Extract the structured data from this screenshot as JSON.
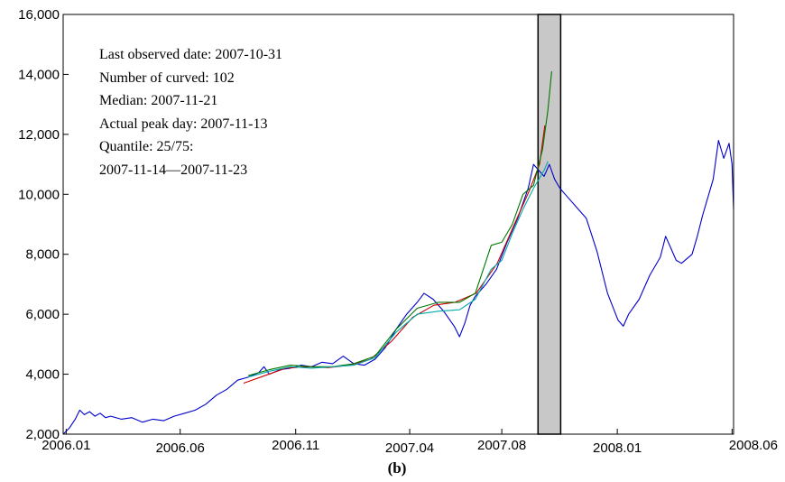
{
  "chart_data": {
    "type": "line",
    "title": "",
    "panel_label": "(b)",
    "xlabel": "",
    "ylabel": "",
    "x_tick_labels": [
      "2006.01",
      "2006.06",
      "2006.11",
      "2007.04",
      "2007.08",
      "2008.01",
      "2008.06"
    ],
    "x_ticks": [
      "2006-01-01",
      "2006-06-01",
      "2006-11-01",
      "2007-04-01",
      "2007-08-01",
      "2008-01-01",
      "2008-06-01"
    ],
    "xlim": [
      "2005-12-28",
      "2008-06-03"
    ],
    "ylim": [
      2000,
      16000
    ],
    "y_ticks": [
      2000,
      4000,
      6000,
      8000,
      10000,
      12000,
      14000,
      16000
    ],
    "y_tick_labels": [
      "2,000",
      "4,000",
      "6,000",
      "8,000",
      "10,000",
      "12,000",
      "14,000",
      "16,000"
    ],
    "grid": false,
    "shaded_region": {
      "from": "2007-09-18",
      "to": "2007-10-18",
      "color": "#c8c8c8"
    },
    "annotations": [
      "Last observed date: 2007-10-31",
      "Number of curved: 102",
      "Median: 2007-11-21",
      "Actual peak day: 2007-11-13",
      "Quantile: 25/75:",
      "2007-11-14—2007-11-23"
    ],
    "series": [
      {
        "color": "#0000cc",
        "points": [
          [
            "2005-12-28",
            2000
          ],
          [
            "2006-01-05",
            2200
          ],
          [
            "2006-01-13",
            2500
          ],
          [
            "2006-01-19",
            2800
          ],
          [
            "2006-01-25",
            2650
          ],
          [
            "2006-02-01",
            2750
          ],
          [
            "2006-02-08",
            2600
          ],
          [
            "2006-02-15",
            2700
          ],
          [
            "2006-02-22",
            2550
          ],
          [
            "2006-03-01",
            2600
          ],
          [
            "2006-03-15",
            2500
          ],
          [
            "2006-03-29",
            2550
          ],
          [
            "2006-04-12",
            2400
          ],
          [
            "2006-04-26",
            2500
          ],
          [
            "2006-05-10",
            2450
          ],
          [
            "2006-05-24",
            2600
          ],
          [
            "2006-06-07",
            2700
          ],
          [
            "2006-06-21",
            2800
          ],
          [
            "2006-07-05",
            3000
          ],
          [
            "2006-07-19",
            3300
          ],
          [
            "2006-08-02",
            3500
          ],
          [
            "2006-08-16",
            3800
          ],
          [
            "2006-08-30",
            3900
          ],
          [
            "2006-09-13",
            4050
          ],
          [
            "2006-09-20",
            4250
          ],
          [
            "2006-09-27",
            4000
          ],
          [
            "2006-10-11",
            4150
          ],
          [
            "2006-10-25",
            4200
          ],
          [
            "2006-11-08",
            4300
          ],
          [
            "2006-11-22",
            4250
          ],
          [
            "2006-12-06",
            4400
          ],
          [
            "2006-12-20",
            4350
          ],
          [
            "2007-01-03",
            4600
          ],
          [
            "2007-01-17",
            4350
          ],
          [
            "2007-01-31",
            4300
          ],
          [
            "2007-02-14",
            4500
          ],
          [
            "2007-02-28",
            4900
          ],
          [
            "2007-03-14",
            5500
          ],
          [
            "2007-03-28",
            6000
          ],
          [
            "2007-04-11",
            6400
          ],
          [
            "2007-04-20",
            6700
          ],
          [
            "2007-05-02",
            6500
          ],
          [
            "2007-05-16",
            6100
          ],
          [
            "2007-05-30",
            5600
          ],
          [
            "2007-06-06",
            5250
          ],
          [
            "2007-06-13",
            5700
          ],
          [
            "2007-06-20",
            6300
          ],
          [
            "2007-06-27",
            6600
          ],
          [
            "2007-07-11",
            7000
          ],
          [
            "2007-07-25",
            7500
          ],
          [
            "2007-08-08",
            8400
          ],
          [
            "2007-08-22",
            9200
          ],
          [
            "2007-09-05",
            10200
          ],
          [
            "2007-09-12",
            11000
          ],
          [
            "2007-09-19",
            10800
          ],
          [
            "2007-09-26",
            10600
          ],
          [
            "2007-10-03",
            11000
          ],
          [
            "2007-10-10",
            10500
          ],
          [
            "2007-10-17",
            10200
          ],
          [
            "2007-10-24",
            10000
          ],
          [
            "2007-11-07",
            9600
          ],
          [
            "2007-11-21",
            9200
          ],
          [
            "2007-12-05",
            8100
          ],
          [
            "2007-12-19",
            6700
          ],
          [
            "2008-01-02",
            5800
          ],
          [
            "2008-01-09",
            5600
          ],
          [
            "2008-01-16",
            6000
          ],
          [
            "2008-01-30",
            6500
          ],
          [
            "2008-02-13",
            7300
          ],
          [
            "2008-02-27",
            7900
          ],
          [
            "2008-03-05",
            8600
          ],
          [
            "2008-03-12",
            8200
          ],
          [
            "2008-03-19",
            7800
          ],
          [
            "2008-03-26",
            7700
          ],
          [
            "2008-04-09",
            8000
          ],
          [
            "2008-04-16",
            8600
          ],
          [
            "2008-04-23",
            9300
          ],
          [
            "2008-05-07",
            10500
          ],
          [
            "2008-05-14",
            11800
          ],
          [
            "2008-05-21",
            11200
          ],
          [
            "2008-05-28",
            11700
          ],
          [
            "2008-06-01",
            11000
          ],
          [
            "2008-06-03",
            9500
          ]
        ]
      },
      {
        "color": "#cc0000",
        "points": [
          [
            "2006-08-24",
            3700
          ],
          [
            "2006-09-21",
            3950
          ],
          [
            "2006-10-19",
            4200
          ],
          [
            "2006-11-16",
            4250
          ],
          [
            "2006-12-14",
            4220
          ],
          [
            "2007-01-11",
            4300
          ],
          [
            "2007-02-08",
            4500
          ],
          [
            "2007-03-08",
            5100
          ],
          [
            "2007-04-05",
            5900
          ],
          [
            "2007-05-03",
            6300
          ],
          [
            "2007-05-31",
            6400
          ],
          [
            "2007-06-28",
            6700
          ],
          [
            "2007-07-26",
            7700
          ],
          [
            "2007-08-09",
            8500
          ],
          [
            "2007-08-23",
            9300
          ],
          [
            "2007-09-06",
            10100
          ],
          [
            "2007-09-20",
            11000
          ],
          [
            "2007-09-27",
            12300
          ]
        ]
      },
      {
        "color": "#007700",
        "points": [
          [
            "2006-08-30",
            3950
          ],
          [
            "2006-09-27",
            4150
          ],
          [
            "2006-10-25",
            4300
          ],
          [
            "2006-11-22",
            4250
          ],
          [
            "2006-12-20",
            4250
          ],
          [
            "2007-01-17",
            4350
          ],
          [
            "2007-02-14",
            4600
          ],
          [
            "2007-03-14",
            5500
          ],
          [
            "2007-04-11",
            6200
          ],
          [
            "2007-05-09",
            6400
          ],
          [
            "2007-06-06",
            6400
          ],
          [
            "2007-06-27",
            6700
          ],
          [
            "2007-07-18",
            8300
          ],
          [
            "2007-08-01",
            8400
          ],
          [
            "2007-08-15",
            9000
          ],
          [
            "2007-08-29",
            10000
          ],
          [
            "2007-09-12",
            10300
          ],
          [
            "2007-09-24",
            11500
          ],
          [
            "2007-10-01",
            12800
          ],
          [
            "2007-10-06",
            14100
          ]
        ]
      },
      {
        "color": "#00aaaa",
        "points": [
          [
            "2006-08-30",
            3900
          ],
          [
            "2006-09-27",
            4100
          ],
          [
            "2006-10-25",
            4250
          ],
          [
            "2006-11-22",
            4200
          ],
          [
            "2006-12-20",
            4250
          ],
          [
            "2007-01-17",
            4300
          ],
          [
            "2007-02-14",
            4550
          ],
          [
            "2007-03-14",
            5400
          ],
          [
            "2007-04-11",
            6000
          ],
          [
            "2007-05-09",
            6100
          ],
          [
            "2007-06-06",
            6150
          ],
          [
            "2007-06-27",
            6500
          ],
          [
            "2007-07-18",
            7500
          ],
          [
            "2007-08-01",
            7800
          ],
          [
            "2007-08-15",
            8700
          ],
          [
            "2007-08-29",
            9500
          ],
          [
            "2007-09-12",
            10200
          ],
          [
            "2007-09-26",
            10800
          ],
          [
            "2007-10-01",
            11100
          ]
        ]
      }
    ]
  }
}
